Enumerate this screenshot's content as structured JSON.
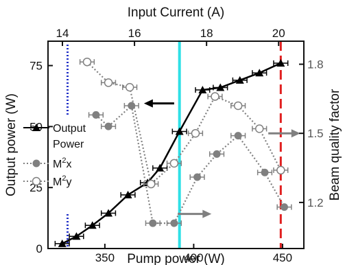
{
  "chart_data": {
    "type": "line",
    "xlabel": "Pump power (W)",
    "ylabel": "Output power (W)",
    "y2label": "Beam quality factor",
    "top_xlabel": "Input Current (A)",
    "xlim": [
      318,
      462
    ],
    "ylim": [
      0,
      85
    ],
    "y2lim": [
      1.0,
      1.9
    ],
    "top_xlim": [
      13.6,
      20.7
    ],
    "x_ticks": [
      350,
      400,
      450
    ],
    "x_tick_labels": [
      "350",
      "400",
      "450"
    ],
    "y_ticks": [
      0,
      25,
      50,
      75
    ],
    "y_tick_labels": [
      "0",
      "25",
      "50",
      "75"
    ],
    "y2_ticks": [
      1.2,
      1.5,
      1.8
    ],
    "y2_tick_labels": [
      "1.2",
      "1.5",
      "1.8"
    ],
    "top_ticks": [
      14,
      16,
      18,
      20
    ],
    "top_tick_labels": [
      "14",
      "16",
      "18",
      "20"
    ],
    "legend": {
      "output_power_line1": "Output",
      "output_power_line2": "Power",
      "m2x": "M",
      "m2y": "M",
      "m2x_sub": "x",
      "m2y_sub": "y",
      "sup": "2"
    },
    "series": [
      {
        "name": "Output Power",
        "axis": "left",
        "marker": "triangle",
        "style": "solid",
        "color": "#000000",
        "points": [
          [
            326,
            2
          ],
          [
            334,
            5
          ],
          [
            343,
            9.5
          ],
          [
            352,
            14.5
          ],
          [
            363,
            22
          ],
          [
            374,
            27
          ],
          [
            381,
            33
          ],
          [
            392,
            48
          ],
          [
            405,
            65
          ],
          [
            415,
            66
          ],
          [
            426,
            69
          ],
          [
            437,
            72
          ],
          [
            449,
            76
          ]
        ],
        "x_err": 4
      },
      {
        "name": "M2x",
        "axis": "right",
        "marker": "filled-circle",
        "style": "dotted",
        "color": "#808080",
        "points": [
          [
            345,
            1.58
          ],
          [
            352,
            1.53
          ],
          [
            365,
            1.62
          ],
          [
            377,
            1.11
          ],
          [
            389,
            1.11
          ],
          [
            402,
            1.31
          ],
          [
            413,
            1.41
          ],
          [
            425,
            1.49
          ],
          [
            440,
            1.33
          ],
          [
            451,
            1.18
          ]
        ],
        "x_err": 4
      },
      {
        "name": "M2y",
        "axis": "right",
        "marker": "open-circle",
        "style": "dotted",
        "color": "#808080",
        "points": [
          [
            340,
            1.81
          ],
          [
            352,
            1.72
          ],
          [
            364,
            1.7
          ],
          [
            376,
            1.28
          ],
          [
            389,
            1.37
          ],
          [
            401,
            1.5
          ],
          [
            412,
            1.66
          ],
          [
            425,
            1.62
          ],
          [
            437,
            1.52
          ],
          [
            449,
            1.34
          ]
        ],
        "x_err": 4
      }
    ],
    "reference_lines": [
      {
        "x": 329,
        "color": "#1f2ec7",
        "style": "dotted"
      },
      {
        "x": 392,
        "color": "#2ee0e6",
        "style": "solid"
      },
      {
        "x": 449,
        "color": "#e02020",
        "style": "dashed"
      }
    ],
    "arrows": [
      {
        "from": [
          389,
          1.63
        ],
        "to": [
          372,
          1.63
        ],
        "axis": "right",
        "color": "#000000"
      },
      {
        "from": [
          442,
          1.5
        ],
        "to": [
          460,
          1.5
        ],
        "axis": "right",
        "color": "#808080"
      },
      {
        "from": [
          391,
          1.15
        ],
        "to": [
          410,
          1.15
        ],
        "axis": "right",
        "color": "#808080"
      }
    ],
    "grid": false
  }
}
